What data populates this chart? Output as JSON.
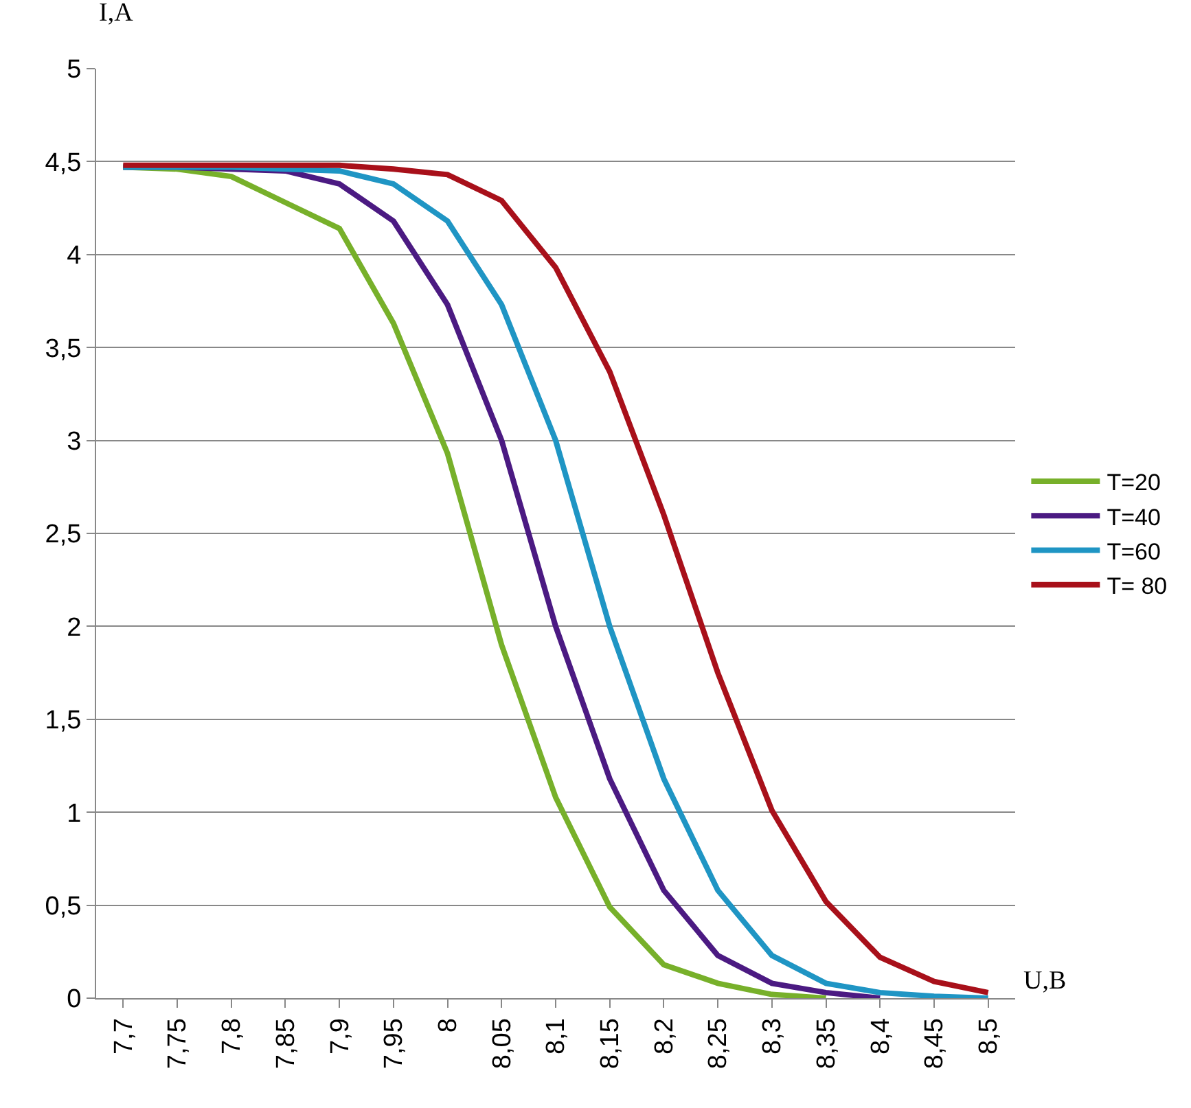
{
  "chart_data": {
    "type": "line",
    "xlabel": "U,B",
    "ylabel": "I,A",
    "categories": [
      "7,7",
      "7,75",
      "7,8",
      "7,85",
      "7,9",
      "7,95",
      "8",
      "8,05",
      "8,1",
      "8,15",
      "8,2",
      "8,25",
      "8,3",
      "8,35",
      "8,4",
      "8,45",
      "8,5"
    ],
    "series": [
      {
        "name": "T=20",
        "color": "#77b02a",
        "values": [
          4.47,
          4.46,
          4.42,
          4.28,
          4.14,
          3.63,
          2.93,
          1.9,
          1.08,
          0.49,
          0.18,
          0.08,
          0.02,
          0,
          null,
          null,
          null
        ]
      },
      {
        "name": "T=40",
        "color": "#4b1a82",
        "values": [
          4.47,
          4.47,
          4.46,
          4.45,
          4.38,
          4.18,
          3.73,
          3.0,
          2.0,
          1.18,
          0.58,
          0.23,
          0.08,
          0.03,
          0,
          null,
          null
        ]
      },
      {
        "name": "T=60",
        "color": "#1f95c4",
        "values": [
          4.47,
          4.47,
          4.47,
          4.46,
          4.45,
          4.38,
          4.18,
          3.73,
          3.0,
          2.0,
          1.18,
          0.58,
          0.23,
          0.08,
          0.03,
          0.01,
          0
        ]
      },
      {
        "name": "T= 80",
        "color": "#a8101a",
        "values": [
          4.48,
          4.48,
          4.48,
          4.48,
          4.48,
          4.46,
          4.43,
          4.29,
          3.93,
          3.37,
          2.6,
          1.75,
          1.01,
          0.52,
          0.22,
          0.09,
          0.03
        ]
      }
    ],
    "ylim": [
      0,
      5
    ],
    "yticks": [
      0,
      {
        "value": 0.5,
        "label": "0,5"
      },
      1,
      {
        "value": 1.5,
        "label": "1,5"
      },
      2,
      {
        "value": 2.5,
        "label": "2,5"
      },
      3,
      {
        "value": 3.5,
        "label": "3,5"
      },
      4,
      {
        "value": 4.5,
        "label": "4,5"
      },
      5
    ],
    "grid": "y",
    "legend": "right",
    "marker": "none",
    "line_style": "solid"
  }
}
